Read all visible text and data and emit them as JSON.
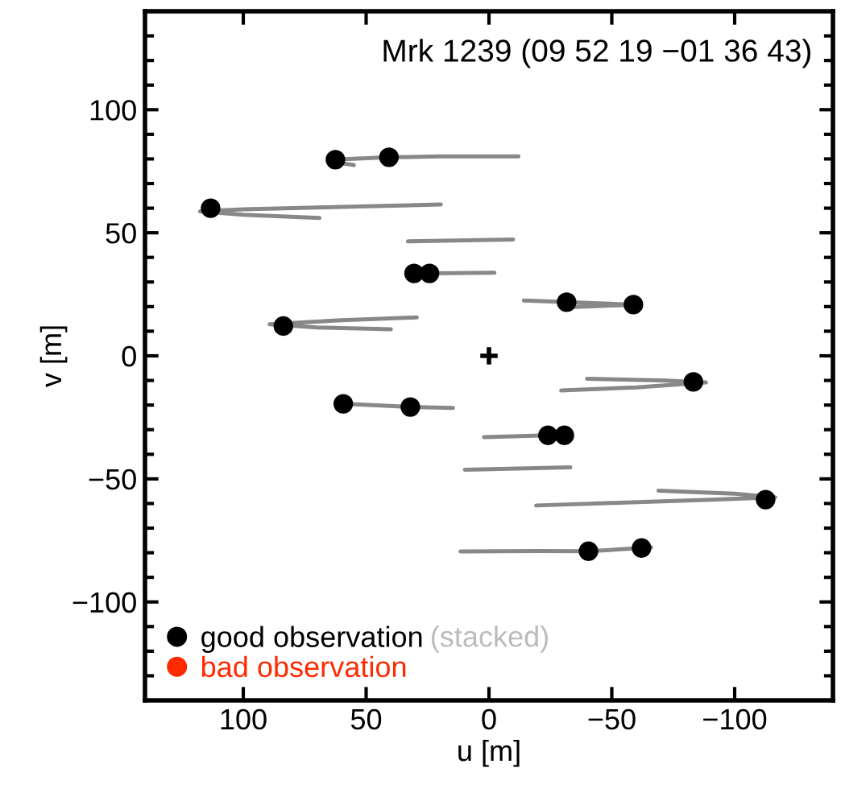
{
  "chart_data": {
    "type": "scatter",
    "title": "Mrk 1239 (09 52 19 −01 36 43)",
    "xlabel": "u [m]",
    "ylabel": "v [m]",
    "xlim": [
      140,
      -140
    ],
    "ylim": [
      -140,
      140
    ],
    "xticks": [
      100,
      50,
      0,
      {
        "value": -50,
        "label": "−50"
      },
      {
        "value": -100,
        "label": "−100"
      }
    ],
    "yticks": [
      {
        "value": -130,
        "label": null
      },
      {
        "value": -120,
        "label": null
      },
      {
        "value": -110,
        "label": null
      },
      {
        "value": -100,
        "label": "−100"
      },
      {
        "value": -90,
        "label": null
      },
      {
        "value": -80,
        "label": null
      },
      {
        "value": -70,
        "label": null
      },
      {
        "value": -60,
        "label": null
      },
      {
        "value": -50,
        "label": "−50"
      },
      {
        "value": -40,
        "label": null
      },
      {
        "value": -30,
        "label": null
      },
      {
        "value": -20,
        "label": null
      },
      {
        "value": -10,
        "label": null
      },
      0,
      {
        "value": 10,
        "label": null
      },
      {
        "value": 20,
        "label": null
      },
      {
        "value": 30,
        "label": null
      },
      {
        "value": 40,
        "label": null
      },
      50,
      {
        "value": 60,
        "label": null
      },
      {
        "value": 70,
        "label": null
      },
      {
        "value": 80,
        "label": null
      },
      {
        "value": 90,
        "label": null
      },
      100,
      {
        "value": 110,
        "label": null
      },
      {
        "value": 120,
        "label": null
      },
      {
        "value": 130,
        "label": null
      }
    ],
    "grid": false,
    "legend": "bottom left",
    "annotations": [
      "(stacked)"
    ],
    "series": [
      {
        "type": "line",
        "color": "#888888",
        "x": [
          55,
          65,
          62.5,
          40.7,
          20,
          -12
        ],
        "values": [
          77.5,
          79,
          79.7,
          80.7,
          81,
          81
        ]
      },
      {
        "type": "line",
        "color": "#888888",
        "x": [
          69,
          100,
          117.6,
          100,
          60,
          19.6
        ],
        "values": [
          56,
          57.3,
          58.7,
          59.5,
          60.5,
          61.5
        ]
      },
      {
        "type": "line",
        "color": "#888888",
        "x": [
          33,
          -9.8
        ],
        "values": [
          46.5,
          47.3
        ]
      },
      {
        "type": "line",
        "color": "#888888",
        "x": [
          31,
          24.2,
          -2.2
        ],
        "values": [
          33.3,
          33.5,
          33.8
        ]
      },
      {
        "type": "line",
        "color": "#888888",
        "x": [
          -14.2,
          -31.6,
          -58.8,
          -40,
          -30
        ],
        "values": [
          22.5,
          21.8,
          20.8,
          20,
          19.7
        ]
      },
      {
        "type": "line",
        "color": "#888888",
        "x": [
          39.9,
          70,
          89.3,
          60,
          29.4
        ],
        "values": [
          10.8,
          11.5,
          12.8,
          14.5,
          15.6
        ]
      },
      {
        "type": "line",
        "color": "#888888",
        "x": [
          -39.9,
          -70,
          -88.3,
          -60,
          -29.4
        ],
        "values": [
          -9.3,
          -10,
          -10.8,
          -12.8,
          -14.1
        ]
      },
      {
        "type": "line",
        "color": "#888888",
        "x": [
          59.3,
          32,
          14.6
        ],
        "values": [
          -19.5,
          -20.8,
          -21.2
        ]
      },
      {
        "type": "line",
        "color": "#888888",
        "x": [
          2,
          -24,
          -30.7
        ],
        "values": [
          -33,
          -32.3,
          -32.3
        ]
      },
      {
        "type": "line",
        "color": "#888888",
        "x": [
          9.8,
          -33.1
        ],
        "values": [
          -46.3,
          -45.3
        ]
      },
      {
        "type": "line",
        "color": "#888888",
        "x": [
          -69,
          -100,
          -116.5,
          -90,
          -50,
          -19.2
        ],
        "values": [
          -54.8,
          -56,
          -57.5,
          -58.5,
          -59.8,
          -60.8
        ]
      },
      {
        "type": "line",
        "color": "#888888",
        "x": [
          11.6,
          -20,
          -40.5,
          -62.1,
          -66
        ],
        "values": [
          -79.5,
          -79.3,
          -79.4,
          -78.1,
          -77.8
        ]
      },
      {
        "marker": "cross",
        "color": "#000000",
        "x": [
          0
        ],
        "values": [
          0
        ]
      },
      {
        "marker": "circle",
        "name": "good observation",
        "color": "#000000",
        "x": [
          62.5,
          40.7,
          113.3,
          30.5,
          24.2,
          -31.6,
          -58.8,
          83.7,
          -83.2,
          59.3,
          32,
          -24,
          -30.7,
          -112.6,
          -40.5,
          -62.1
        ],
        "values": [
          79.7,
          80.7,
          60,
          33.5,
          33.5,
          21.8,
          20.8,
          12.1,
          -10.6,
          -19.5,
          -20.8,
          -32.3,
          -32.3,
          -58.4,
          -79.4,
          -78.1
        ]
      },
      {
        "marker": "circle",
        "name": "bad observation",
        "color": "#ff2a00"
      }
    ]
  }
}
